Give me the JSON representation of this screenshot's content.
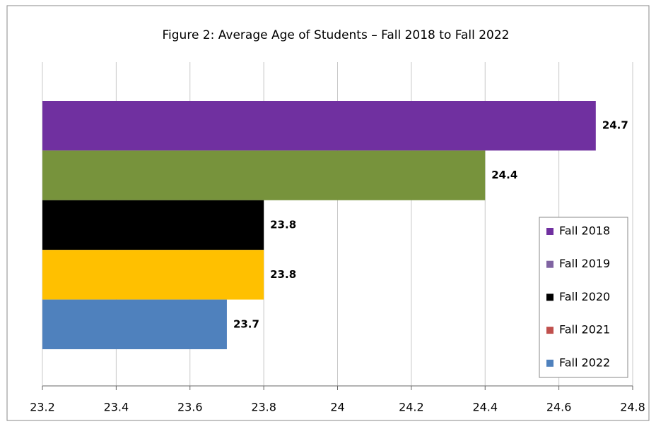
{
  "chart_data": {
    "type": "bar",
    "orientation": "horizontal",
    "title": "Figure 2: Average Age of Students – Fall 2018 to Fall 2022",
    "series": [
      {
        "name": "Fall 2018",
        "color": "#7030a0",
        "legend_color": "#7030a0",
        "values": [
          24.7
        ]
      },
      {
        "name": "Fall 2019",
        "color": "#77933c",
        "legend_color": "#8064a2",
        "values": [
          24.4
        ]
      },
      {
        "name": "Fall 2020",
        "color": "#000000",
        "legend_color": "#000000",
        "values": [
          23.8
        ]
      },
      {
        "name": "Fall 2021",
        "color": "#ffc000",
        "legend_color": "#c0504d",
        "values": [
          23.8
        ]
      },
      {
        "name": "Fall 2022",
        "color": "#4f81bd",
        "legend_color": "#4f81bd",
        "values": [
          23.7
        ]
      }
    ],
    "xlim": [
      23.2,
      24.8
    ],
    "xticks": [
      23.2,
      23.4,
      23.6,
      23.8,
      24,
      24.2,
      24.4,
      24.6,
      24.8
    ],
    "grid": true,
    "legend": "right"
  }
}
